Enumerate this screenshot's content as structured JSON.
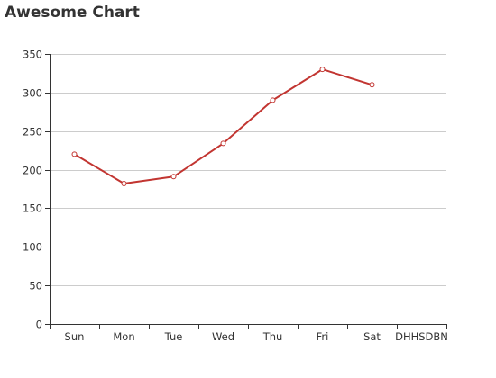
{
  "chart_data": {
    "type": "line",
    "title": "Awesome Chart",
    "xlabel": "",
    "ylabel": "",
    "categories": [
      "Sun",
      "Mon",
      "Tue",
      "Wed",
      "Thu",
      "Fri",
      "Sat",
      "DHHSDBN"
    ],
    "series": [
      {
        "values": [
          220,
          182,
          191,
          234,
          290,
          330,
          310,
          null
        ]
      }
    ],
    "ylim": [
      0,
      350
    ],
    "yticks": [
      0,
      50,
      100,
      150,
      200,
      250,
      300,
      350
    ],
    "grid": true,
    "legend": "none",
    "colors": {
      "line": "#c23531",
      "grid": "#cccccc",
      "axis": "#333333",
      "marker_fill": "#ffffff"
    }
  }
}
